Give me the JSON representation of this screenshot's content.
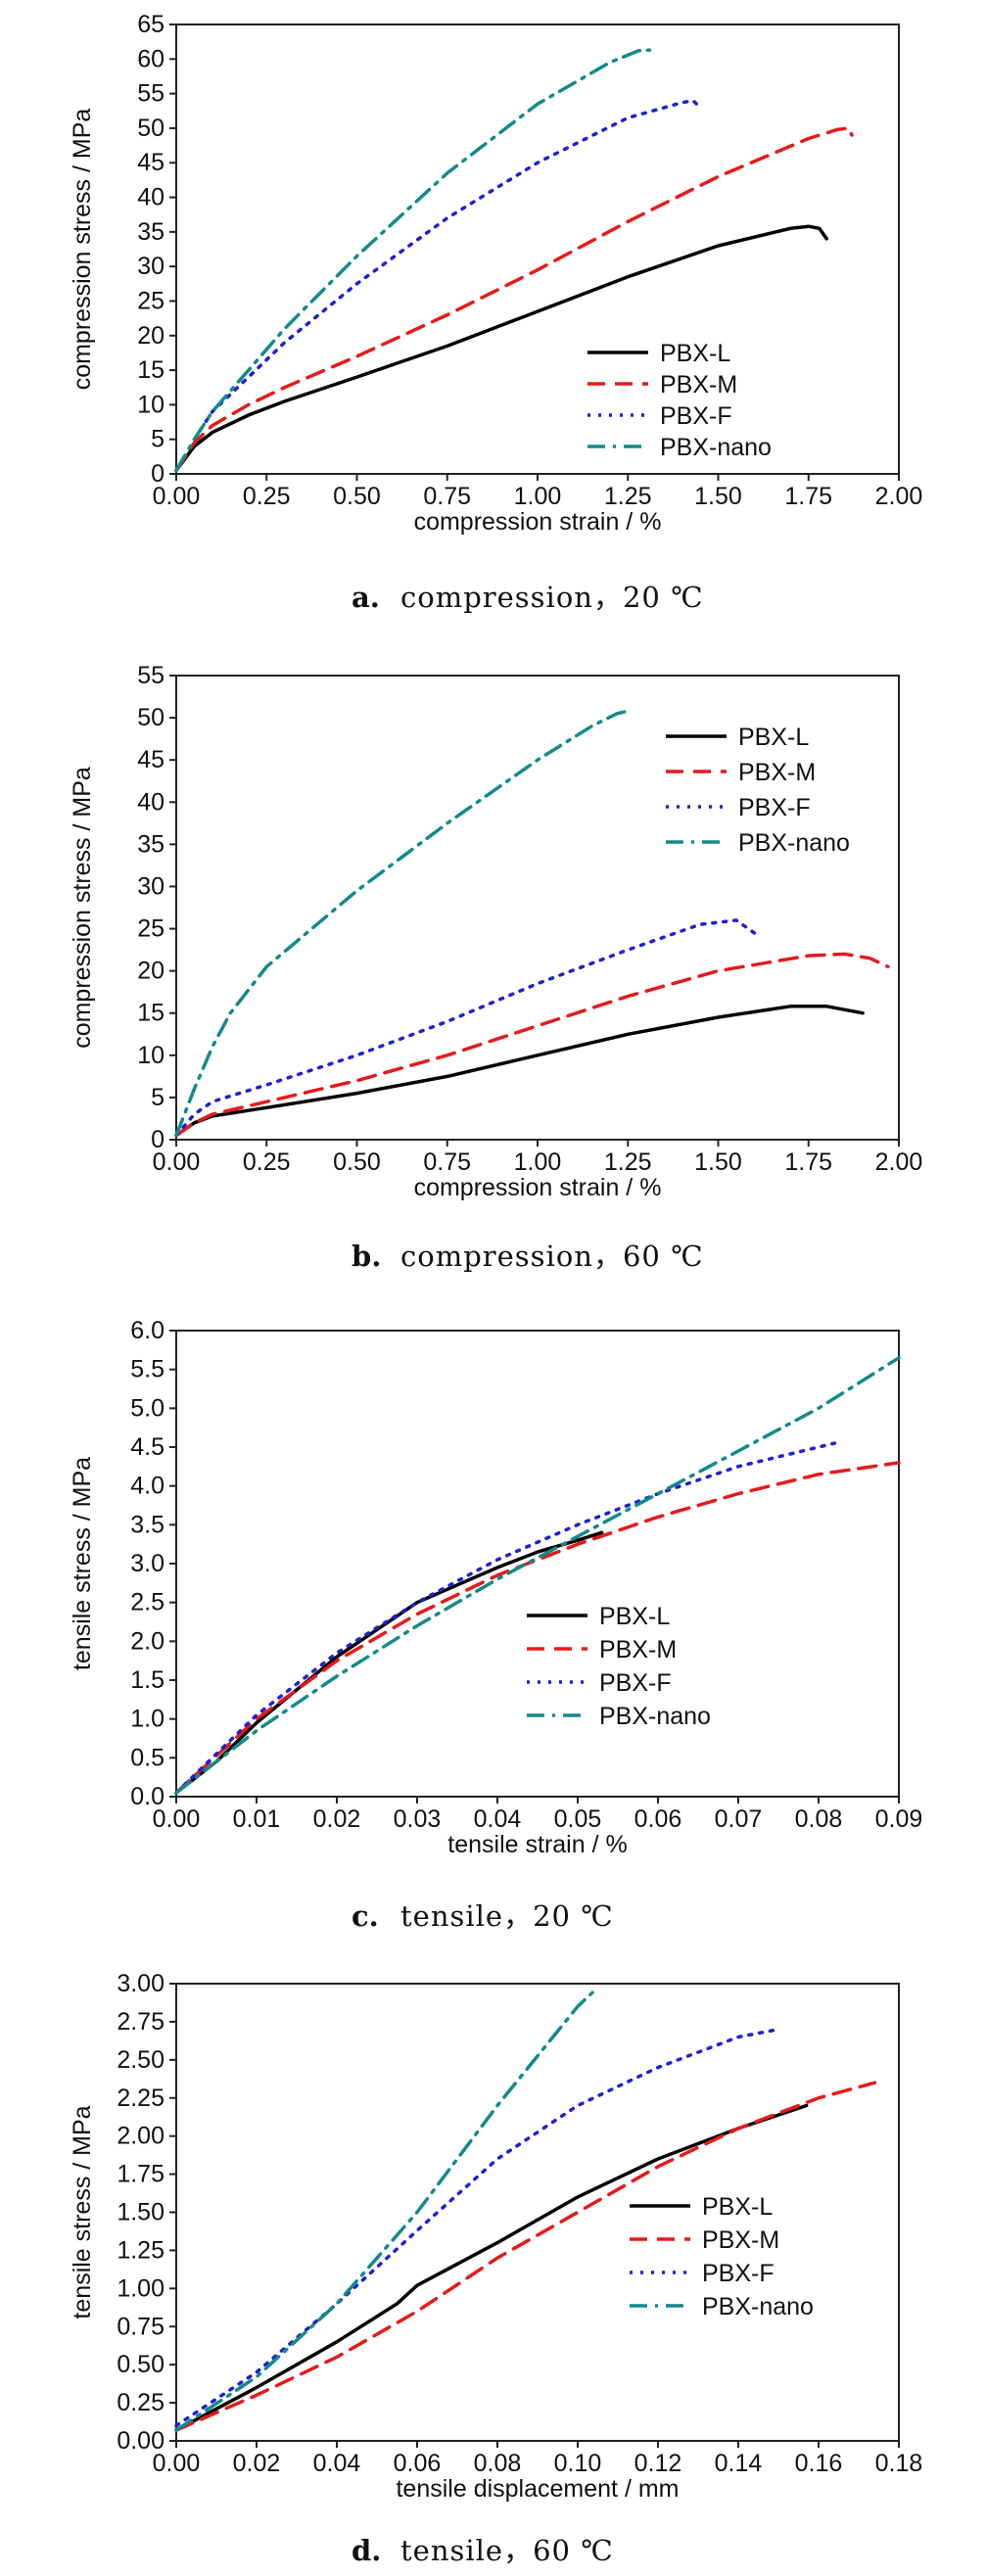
{
  "colors": {
    "PBX-L": "#000000",
    "PBX-M": "#e41a1c",
    "PBX-F": "#1f1fd1",
    "PBX-nano": "#138a8a"
  },
  "chart_data": [
    {
      "type": "line",
      "caption_letter": "a.",
      "caption": "compression，20 ℃",
      "xlabel": "compression strain / %",
      "ylabel": "compression stress / MPa",
      "xlim": [
        0,
        2.0
      ],
      "ylim": [
        0,
        65
      ],
      "xticks": [
        "0.00",
        "0.25",
        "0.50",
        "0.75",
        "1.00",
        "1.25",
        "1.50",
        "1.75",
        "2.00"
      ],
      "yticks": [
        "0",
        "5",
        "10",
        "15",
        "20",
        "25",
        "30",
        "35",
        "40",
        "45",
        "50",
        "55",
        "60",
        "65"
      ],
      "legend_position": "lower-right",
      "series": [
        {
          "name": "PBX-L",
          "x": [
            0.0,
            0.05,
            0.1,
            0.2,
            0.3,
            0.5,
            0.75,
            1.0,
            1.25,
            1.5,
            1.7,
            1.75,
            1.78,
            1.8
          ],
          "y": [
            0.5,
            4,
            6,
            8.5,
            10.5,
            14,
            18.5,
            23.5,
            28.5,
            33,
            35.5,
            35.8,
            35.5,
            34
          ]
        },
        {
          "name": "PBX-M",
          "x": [
            0.0,
            0.05,
            0.1,
            0.2,
            0.3,
            0.5,
            0.75,
            1.0,
            1.25,
            1.5,
            1.75,
            1.83,
            1.86,
            1.87
          ],
          "y": [
            0.5,
            4.5,
            7,
            10,
            12.5,
            17,
            23,
            29.5,
            36.5,
            43,
            48.5,
            49.8,
            50,
            49
          ]
        },
        {
          "name": "PBX-F",
          "x": [
            0.05,
            0.1,
            0.2,
            0.3,
            0.5,
            0.75,
            1.0,
            1.25,
            1.4,
            1.43,
            1.44
          ],
          "y": [
            5,
            9,
            14,
            19,
            27.5,
            37,
            45,
            51.5,
            53.7,
            54,
            53.5
          ]
        },
        {
          "name": "PBX-nano",
          "x": [
            0.0,
            0.05,
            0.1,
            0.2,
            0.3,
            0.5,
            0.75,
            1.0,
            1.2,
            1.28,
            1.31
          ],
          "y": [
            0.5,
            5,
            9,
            15,
            21,
            31.5,
            43.5,
            53.5,
            59.5,
            61.2,
            61.3
          ]
        }
      ]
    },
    {
      "type": "line",
      "caption_letter": "b.",
      "caption": "compression，60 ℃",
      "xlabel": "compression strain / %",
      "ylabel": "compression stress / MPa",
      "xlim": [
        0,
        2.0
      ],
      "ylim": [
        0,
        55
      ],
      "xticks": [
        "0.00",
        "0.25",
        "0.50",
        "0.75",
        "1.00",
        "1.25",
        "1.50",
        "1.75",
        "2.00"
      ],
      "yticks": [
        "0",
        "5",
        "10",
        "15",
        "20",
        "25",
        "30",
        "35",
        "40",
        "45",
        "50",
        "55"
      ],
      "legend_position": "upper-right",
      "series": [
        {
          "name": "PBX-L",
          "x": [
            0.0,
            0.05,
            0.1,
            0.25,
            0.5,
            0.75,
            1.0,
            1.25,
            1.5,
            1.7,
            1.8,
            1.9
          ],
          "y": [
            0.5,
            2,
            2.8,
            3.8,
            5.5,
            7.5,
            10,
            12.5,
            14.5,
            15.8,
            15.8,
            15
          ]
        },
        {
          "name": "PBX-M",
          "x": [
            0.0,
            0.05,
            0.1,
            0.25,
            0.5,
            0.75,
            1.0,
            1.25,
            1.5,
            1.75,
            1.85,
            1.92,
            1.97
          ],
          "y": [
            0.5,
            2,
            3,
            4.5,
            7,
            10,
            13.5,
            17,
            20,
            21.8,
            22,
            21.5,
            20.5
          ]
        },
        {
          "name": "PBX-F",
          "x": [
            0.0,
            0.05,
            0.1,
            0.25,
            0.5,
            0.75,
            1.0,
            1.25,
            1.45,
            1.55,
            1.6
          ],
          "y": [
            0.5,
            3,
            4.5,
            6.5,
            10,
            14,
            18.5,
            22.5,
            25.5,
            26,
            24.5
          ]
        },
        {
          "name": "PBX-nano",
          "x": [
            0.0,
            0.05,
            0.1,
            0.15,
            0.25,
            0.5,
            0.75,
            1.0,
            1.15,
            1.22,
            1.25
          ],
          "y": [
            0.5,
            6,
            11,
            15,
            20.5,
            29.5,
            37.5,
            45,
            49,
            50.5,
            50.8
          ]
        }
      ]
    },
    {
      "type": "line",
      "caption_letter": "c.",
      "caption": "tensile，20 ℃",
      "xlabel": "tensile strain / %",
      "ylabel": "tensile stress / MPa",
      "xlim": [
        0,
        0.09
      ],
      "ylim": [
        0,
        6.0
      ],
      "xticks": [
        "0.00",
        "0.01",
        "0.02",
        "0.03",
        "0.04",
        "0.05",
        "0.06",
        "0.07",
        "0.08",
        "0.09"
      ],
      "yticks": [
        "0.0",
        "0.5",
        "1.0",
        "1.5",
        "2.0",
        "2.5",
        "3.0",
        "3.5",
        "4.0",
        "4.5",
        "5.0",
        "5.5",
        "6.0"
      ],
      "legend_position": "lower-center",
      "series": [
        {
          "name": "PBX-L",
          "x": [
            0.0,
            0.005,
            0.01,
            0.02,
            0.03,
            0.04,
            0.045,
            0.05,
            0.053
          ],
          "y": [
            0.05,
            0.45,
            0.95,
            1.8,
            2.5,
            2.95,
            3.15,
            3.3,
            3.4
          ]
        },
        {
          "name": "PBX-M",
          "x": [
            0.0,
            0.01,
            0.02,
            0.03,
            0.04,
            0.05,
            0.06,
            0.07,
            0.08,
            0.09
          ],
          "y": [
            0.05,
            1.0,
            1.75,
            2.35,
            2.85,
            3.25,
            3.6,
            3.9,
            4.15,
            4.3
          ]
        },
        {
          "name": "PBX-F",
          "x": [
            0.0,
            0.01,
            0.02,
            0.03,
            0.04,
            0.05,
            0.06,
            0.07,
            0.08,
            0.082
          ],
          "y": [
            0.05,
            1.05,
            1.85,
            2.5,
            3.05,
            3.5,
            3.9,
            4.25,
            4.5,
            4.55
          ]
        },
        {
          "name": "PBX-nano",
          "x": [
            0.0,
            0.01,
            0.02,
            0.03,
            0.04,
            0.05,
            0.06,
            0.07,
            0.08,
            0.09
          ],
          "y": [
            0.05,
            0.85,
            1.55,
            2.2,
            2.8,
            3.35,
            3.9,
            4.45,
            5.0,
            5.65
          ]
        }
      ]
    },
    {
      "type": "line",
      "caption_letter": "d.",
      "caption": "tensile，60 ℃",
      "xlabel": "tensile displacement / mm",
      "ylabel": "tensile stress / MPa",
      "xlim": [
        0,
        0.18
      ],
      "ylim": [
        0,
        3.0
      ],
      "xticks": [
        "0.00",
        "0.02",
        "0.04",
        "0.06",
        "0.08",
        "0.10",
        "0.12",
        "0.14",
        "0.16",
        "0.18"
      ],
      "yticks": [
        "0.00",
        "0.25",
        "0.50",
        "0.75",
        "1.00",
        "1.25",
        "1.50",
        "1.75",
        "2.00",
        "2.25",
        "2.50",
        "2.75",
        "3.00"
      ],
      "legend_position": "lower-right",
      "series": [
        {
          "name": "PBX-L",
          "x": [
            0.0,
            0.02,
            0.04,
            0.055,
            0.06,
            0.08,
            0.1,
            0.12,
            0.14,
            0.157
          ],
          "y": [
            0.07,
            0.35,
            0.65,
            0.9,
            1.02,
            1.3,
            1.6,
            1.85,
            2.05,
            2.2
          ]
        },
        {
          "name": "PBX-M",
          "x": [
            0.0,
            0.02,
            0.04,
            0.06,
            0.08,
            0.1,
            0.12,
            0.14,
            0.16,
            0.174
          ],
          "y": [
            0.07,
            0.3,
            0.55,
            0.85,
            1.2,
            1.5,
            1.8,
            2.05,
            2.25,
            2.35
          ]
        },
        {
          "name": "PBX-F",
          "x": [
            0.0,
            0.02,
            0.04,
            0.06,
            0.08,
            0.1,
            0.12,
            0.14,
            0.15
          ],
          "y": [
            0.1,
            0.45,
            0.9,
            1.38,
            1.85,
            2.2,
            2.45,
            2.65,
            2.7
          ]
        },
        {
          "name": "PBX-nano",
          "x": [
            0.0,
            0.02,
            0.04,
            0.06,
            0.08,
            0.1,
            0.104
          ],
          "y": [
            0.07,
            0.42,
            0.9,
            1.5,
            2.2,
            2.85,
            2.95
          ]
        }
      ]
    }
  ]
}
